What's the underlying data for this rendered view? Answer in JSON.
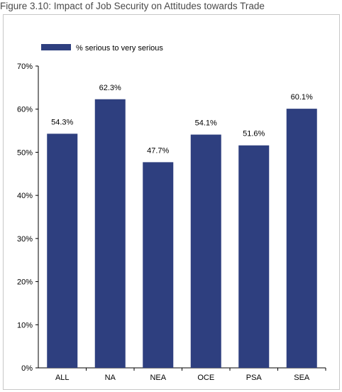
{
  "figure_title": "Figure 3.10: Impact of Job Security on Attitudes towards Trade",
  "chart_data": {
    "type": "bar",
    "categories": [
      "ALL",
      "NA",
      "NEA",
      "OCE",
      "PSA",
      "SEA"
    ],
    "series": [
      {
        "name": "% serious to very serious",
        "values": [
          54.3,
          62.3,
          47.7,
          54.1,
          51.6,
          60.1
        ],
        "labels": [
          "54.3%",
          "62.3%",
          "47.7%",
          "54.1%",
          "51.6%",
          "60.1%"
        ],
        "color": "#2e3f7f"
      }
    ],
    "ylim": [
      0,
      70
    ],
    "yticks": [
      0,
      10,
      20,
      30,
      40,
      50,
      60,
      70
    ],
    "ytick_labels": [
      "0%",
      "10%",
      "20%",
      "30%",
      "40%",
      "50%",
      "60%",
      "70%"
    ],
    "grid": false,
    "legend_position": "top-left"
  }
}
